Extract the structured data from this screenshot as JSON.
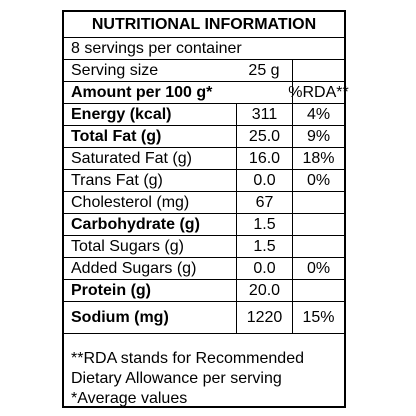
{
  "title": "NUTRITIONAL INFORMATION",
  "servings": "8 servings per container",
  "serving_size": {
    "label": "Serving size",
    "value": "25 g"
  },
  "amount_header": {
    "label": "Amount per 100 g*",
    "rda": "%RDA**"
  },
  "rows": [
    {
      "label": "Energy (kcal)",
      "value": "311",
      "rda": "4%"
    },
    {
      "label": "Total Fat (g)",
      "value": "25.0",
      "rda": "9%"
    },
    {
      "label": "Saturated Fat (g)",
      "value": "16.0",
      "rda": "18%"
    },
    {
      "label": "Trans Fat (g)",
      "value": "0.0",
      "rda": "0%"
    },
    {
      "label": "Cholesterol (mg)",
      "value": "67",
      "rda": ""
    },
    {
      "label": "Carbohydrate (g)",
      "value": "1.5",
      "rda": ""
    },
    {
      "label": "Total Sugars (g)",
      "value": "1.5",
      "rda": ""
    },
    {
      "label": "Added Sugars (g)",
      "value": "0.0",
      "rda": "0%"
    },
    {
      "label": "Protein (g)",
      "value": "20.0",
      "rda": ""
    },
    {
      "label": "Sodium (mg)",
      "value": "1220",
      "rda": "15%"
    }
  ],
  "footnotes": [
    "**RDA stands for Recommended",
    "Dietary Allowance per serving",
    "*Average values"
  ]
}
